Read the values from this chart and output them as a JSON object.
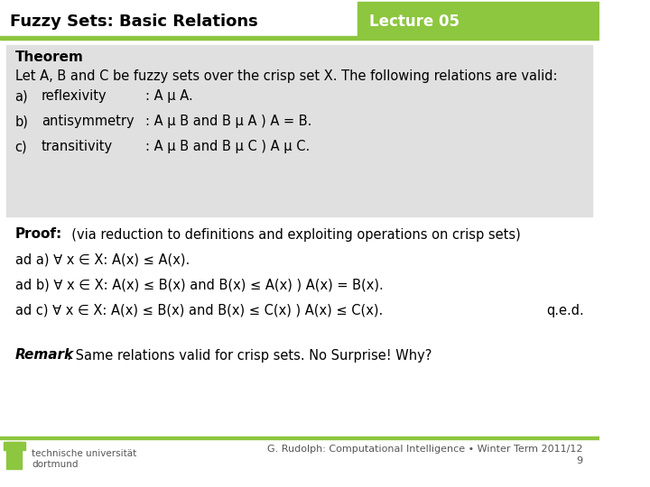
{
  "title_left": "Fuzzy Sets: Basic Relations",
  "title_right": "Lecture 05",
  "header_bg": "#ffffff",
  "green_color": "#8dc63f",
  "theorem_bg": "#e0e0e0",
  "white_bg": "#ffffff",
  "theorem_label": "Theorem",
  "theorem_intro": "Let A, B and C be fuzzy sets over the crisp set X. The following relations are valid:",
  "items": [
    [
      "a)",
      "reflexivity",
      ": A μ A."
    ],
    [
      "b)",
      "antisymmetry",
      ": A μ B and B μ A ) A = B."
    ],
    [
      "c)",
      "transitivity",
      ": A μ B and B μ C ) A μ C."
    ]
  ],
  "proof_label": "Proof:",
  "proof_intro": "  (via reduction to definitions and exploiting operations on crisp sets)",
  "proof_lines": [
    "ad a) ∀ x ∈ X: A(x) ≤ A(x).",
    "ad b) ∀ x ∈ X: A(x) ≤ B(x) and B(x) ≤ A(x) ) A(x) = B(x).",
    "ad c) ∀ x ∈ X: A(x) ≤ B(x) and B(x) ≤ C(x) ) A(x) ≤ C(x)."
  ],
  "qed": "q.e.d.",
  "remark_label": "Remark",
  "remark_text": ": Same relations valid for crisp sets. No Surprise! Why?",
  "footer_left": "technische universität\ndortmund",
  "footer_right": "G. Rudolph: Computational Intelligence • Winter Term 2011/12\n9",
  "body_bg": "#f5f5f5"
}
